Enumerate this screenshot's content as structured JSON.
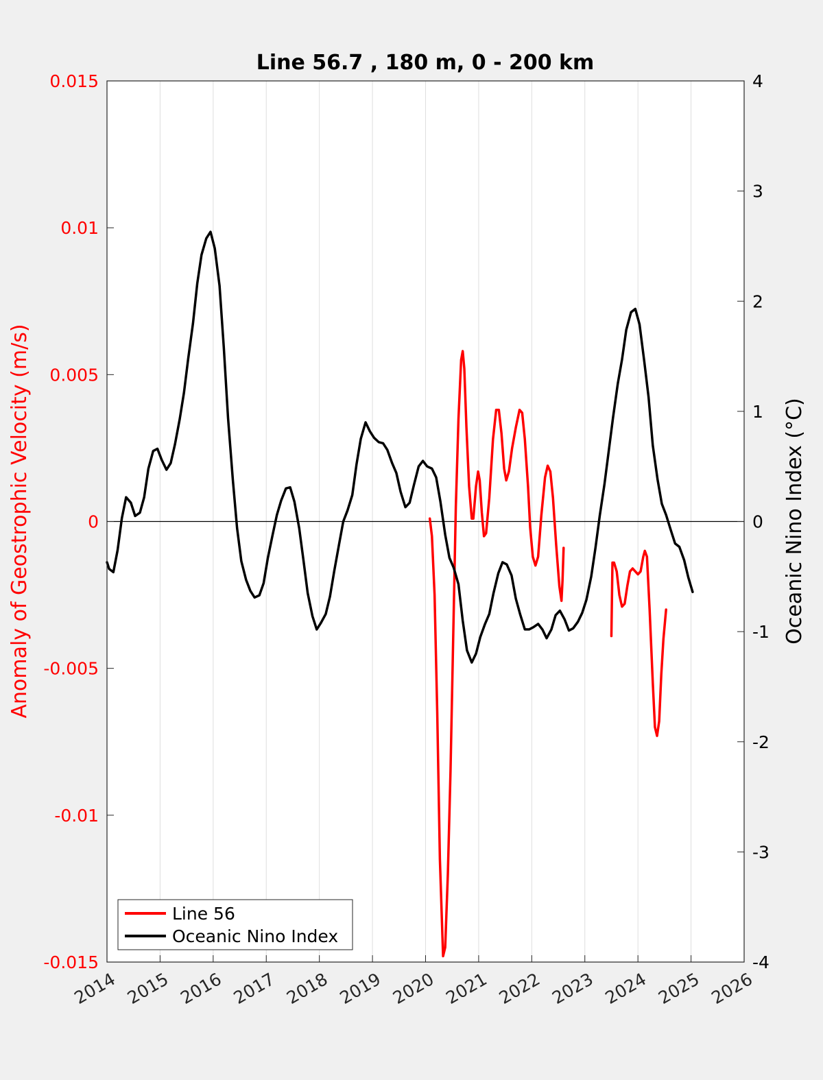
{
  "colors": {
    "background": "#f0f0f0",
    "plot_background": "#ffffff",
    "left_axis": "#ff0000",
    "right_axis": "#000000",
    "line56": "#ff0000",
    "oni": "#000000",
    "grid": "#dedede"
  },
  "chart_data": {
    "type": "line",
    "title": "Line 56.7 , 180 m, 0 - 200 km",
    "xlabel": "",
    "ylabel_left": "Anomaly of Geostrophic Velocity (m/s)",
    "ylabel_right": "Oceanic Nino Index (°C)",
    "xlim": [
      2014,
      2026
    ],
    "ylim_left": [
      -0.015,
      0.015
    ],
    "ylim_right": [
      -4,
      4
    ],
    "x_ticks": [
      "2014",
      "2015",
      "2016",
      "2017",
      "2018",
      "2019",
      "2020",
      "2021",
      "2022",
      "2023",
      "2024",
      "2025",
      "2026"
    ],
    "y_left_ticks": [
      "-0.015",
      "-0.01",
      "-0.005",
      "0",
      "0.005",
      "0.01",
      "0.015"
    ],
    "y_right_ticks": [
      "-4",
      "-3",
      "-2",
      "-1",
      "0",
      "1",
      "2",
      "3",
      "4"
    ],
    "grid": "vertical",
    "zero_line": true,
    "legend_position": "bottom-left",
    "series": [
      {
        "name": "Line 56",
        "axis": "left",
        "segments": [
          [
            [
              2020.08,
              0.0001
            ],
            [
              2020.12,
              -0.0005
            ],
            [
              2020.17,
              -0.0025
            ],
            [
              2020.22,
              -0.0065
            ],
            [
              2020.27,
              -0.0115
            ],
            [
              2020.33,
              -0.0148
            ],
            [
              2020.37,
              -0.0145
            ],
            [
              2020.42,
              -0.012
            ],
            [
              2020.47,
              -0.0085
            ],
            [
              2020.52,
              -0.004
            ],
            [
              2020.57,
              0.0005
            ],
            [
              2020.62,
              0.0035
            ],
            [
              2020.67,
              0.0055
            ],
            [
              2020.7,
              0.0058
            ],
            [
              2020.73,
              0.0052
            ],
            [
              2020.77,
              0.0032
            ],
            [
              2020.82,
              0.0012
            ],
            [
              2020.87,
              0.0001
            ],
            [
              2020.9,
              0.0001
            ],
            [
              2020.95,
              0.0012
            ],
            [
              2020.99,
              0.0017
            ],
            [
              2021.02,
              0.0014
            ],
            [
              2021.06,
              0.0003
            ],
            [
              2021.1,
              -0.0005
            ],
            [
              2021.14,
              -0.0004
            ],
            [
              2021.2,
              0.0008
            ],
            [
              2021.27,
              0.0028
            ],
            [
              2021.33,
              0.0038
            ],
            [
              2021.38,
              0.0038
            ],
            [
              2021.43,
              0.003
            ],
            [
              2021.48,
              0.0018
            ],
            [
              2021.52,
              0.0014
            ],
            [
              2021.57,
              0.0017
            ],
            [
              2021.63,
              0.0025
            ],
            [
              2021.7,
              0.0032
            ],
            [
              2021.77,
              0.0038
            ],
            [
              2021.82,
              0.0037
            ],
            [
              2021.87,
              0.0028
            ],
            [
              2021.93,
              0.0012
            ],
            [
              2021.97,
              -0.0002
            ],
            [
              2022.02,
              -0.0012
            ],
            [
              2022.07,
              -0.0015
            ],
            [
              2022.12,
              -0.0012
            ],
            [
              2022.18,
              0.0002
            ],
            [
              2022.25,
              0.0015
            ],
            [
              2022.3,
              0.0019
            ],
            [
              2022.35,
              0.0017
            ],
            [
              2022.4,
              0.0008
            ],
            [
              2022.46,
              -0.0008
            ],
            [
              2022.52,
              -0.0022
            ],
            [
              2022.56,
              -0.0027
            ],
            [
              2022.58,
              -0.002
            ],
            [
              2022.6,
              -0.0009
            ]
          ],
          [
            [
              2023.5,
              -0.0039
            ],
            [
              2023.52,
              -0.0014
            ],
            [
              2023.55,
              -0.0014
            ],
            [
              2023.6,
              -0.0017
            ],
            [
              2023.65,
              -0.0025
            ],
            [
              2023.7,
              -0.0029
            ],
            [
              2023.75,
              -0.0028
            ],
            [
              2023.8,
              -0.0022
            ],
            [
              2023.85,
              -0.0017
            ],
            [
              2023.9,
              -0.0016
            ],
            [
              2023.95,
              -0.0017
            ],
            [
              2024.0,
              -0.0018
            ],
            [
              2024.05,
              -0.0017
            ],
            [
              2024.1,
              -0.0012
            ],
            [
              2024.13,
              -0.001
            ],
            [
              2024.17,
              -0.0012
            ],
            [
              2024.22,
              -0.003
            ],
            [
              2024.28,
              -0.0055
            ],
            [
              2024.32,
              -0.007
            ],
            [
              2024.36,
              -0.0073
            ],
            [
              2024.4,
              -0.0068
            ],
            [
              2024.44,
              -0.0052
            ],
            [
              2024.48,
              -0.004
            ],
            [
              2024.53,
              -0.003
            ]
          ]
        ]
      },
      {
        "name": "Oceanic Nino Index",
        "axis": "right",
        "segments": [
          [
            [
              2014.0,
              -0.37
            ],
            [
              2014.04,
              -0.43
            ],
            [
              2014.12,
              -0.46
            ],
            [
              2014.2,
              -0.26
            ],
            [
              2014.28,
              0.03
            ],
            [
              2014.36,
              0.22
            ],
            [
              2014.45,
              0.17
            ],
            [
              2014.53,
              0.05
            ],
            [
              2014.62,
              0.08
            ],
            [
              2014.7,
              0.22
            ],
            [
              2014.78,
              0.48
            ],
            [
              2014.87,
              0.64
            ],
            [
              2014.95,
              0.66
            ],
            [
              2015.03,
              0.56
            ],
            [
              2015.12,
              0.47
            ],
            [
              2015.2,
              0.53
            ],
            [
              2015.28,
              0.7
            ],
            [
              2015.37,
              0.93
            ],
            [
              2015.45,
              1.17
            ],
            [
              2015.53,
              1.48
            ],
            [
              2015.62,
              1.8
            ],
            [
              2015.7,
              2.16
            ],
            [
              2015.78,
              2.42
            ],
            [
              2015.87,
              2.57
            ],
            [
              2015.95,
              2.63
            ],
            [
              2016.03,
              2.48
            ],
            [
              2016.12,
              2.14
            ],
            [
              2016.2,
              1.58
            ],
            [
              2016.28,
              0.94
            ],
            [
              2016.37,
              0.38
            ],
            [
              2016.45,
              -0.06
            ],
            [
              2016.53,
              -0.36
            ],
            [
              2016.62,
              -0.53
            ],
            [
              2016.7,
              -0.63
            ],
            [
              2016.78,
              -0.69
            ],
            [
              2016.87,
              -0.67
            ],
            [
              2016.95,
              -0.56
            ],
            [
              2017.03,
              -0.33
            ],
            [
              2017.12,
              -0.12
            ],
            [
              2017.2,
              0.06
            ],
            [
              2017.28,
              0.19
            ],
            [
              2017.37,
              0.3
            ],
            [
              2017.45,
              0.31
            ],
            [
              2017.53,
              0.18
            ],
            [
              2017.62,
              -0.06
            ],
            [
              2017.7,
              -0.35
            ],
            [
              2017.78,
              -0.65
            ],
            [
              2017.87,
              -0.86
            ],
            [
              2017.95,
              -0.98
            ],
            [
              2018.03,
              -0.92
            ],
            [
              2018.12,
              -0.84
            ],
            [
              2018.2,
              -0.68
            ],
            [
              2018.28,
              -0.45
            ],
            [
              2018.37,
              -0.21
            ],
            [
              2018.45,
              0.0
            ],
            [
              2018.53,
              0.1
            ],
            [
              2018.62,
              0.24
            ],
            [
              2018.7,
              0.52
            ],
            [
              2018.78,
              0.75
            ],
            [
              2018.87,
              0.9
            ],
            [
              2018.95,
              0.82
            ],
            [
              2019.03,
              0.76
            ],
            [
              2019.12,
              0.72
            ],
            [
              2019.2,
              0.71
            ],
            [
              2019.28,
              0.65
            ],
            [
              2019.37,
              0.53
            ],
            [
              2019.45,
              0.44
            ],
            [
              2019.53,
              0.27
            ],
            [
              2019.62,
              0.13
            ],
            [
              2019.7,
              0.17
            ],
            [
              2019.78,
              0.33
            ],
            [
              2019.87,
              0.5
            ],
            [
              2019.95,
              0.55
            ],
            [
              2020.03,
              0.5
            ],
            [
              2020.12,
              0.48
            ],
            [
              2020.2,
              0.4
            ],
            [
              2020.28,
              0.18
            ],
            [
              2020.37,
              -0.12
            ],
            [
              2020.45,
              -0.33
            ],
            [
              2020.53,
              -0.42
            ],
            [
              2020.62,
              -0.57
            ],
            [
              2020.7,
              -0.9
            ],
            [
              2020.78,
              -1.17
            ],
            [
              2020.87,
              -1.28
            ],
            [
              2020.95,
              -1.2
            ],
            [
              2021.03,
              -1.05
            ],
            [
              2021.12,
              -0.93
            ],
            [
              2021.2,
              -0.84
            ],
            [
              2021.28,
              -0.65
            ],
            [
              2021.37,
              -0.47
            ],
            [
              2021.45,
              -0.37
            ],
            [
              2021.53,
              -0.39
            ],
            [
              2021.62,
              -0.49
            ],
            [
              2021.7,
              -0.7
            ],
            [
              2021.78,
              -0.84
            ],
            [
              2021.87,
              -0.98
            ],
            [
              2021.95,
              -0.98
            ],
            [
              2022.03,
              -0.96
            ],
            [
              2022.12,
              -0.93
            ],
            [
              2022.2,
              -0.98
            ],
            [
              2022.28,
              -1.06
            ],
            [
              2022.37,
              -0.98
            ],
            [
              2022.45,
              -0.85
            ],
            [
              2022.53,
              -0.81
            ],
            [
              2022.62,
              -0.89
            ],
            [
              2022.7,
              -0.99
            ],
            [
              2022.78,
              -0.97
            ],
            [
              2022.87,
              -0.91
            ],
            [
              2022.95,
              -0.83
            ],
            [
              2023.03,
              -0.71
            ],
            [
              2023.12,
              -0.5
            ],
            [
              2023.2,
              -0.24
            ],
            [
              2023.28,
              0.05
            ],
            [
              2023.37,
              0.34
            ],
            [
              2023.45,
              0.64
            ],
            [
              2023.53,
              0.94
            ],
            [
              2023.62,
              1.25
            ],
            [
              2023.7,
              1.47
            ],
            [
              2023.78,
              1.74
            ],
            [
              2023.87,
              1.9
            ],
            [
              2023.95,
              1.93
            ],
            [
              2024.03,
              1.79
            ],
            [
              2024.12,
              1.45
            ],
            [
              2024.2,
              1.13
            ],
            [
              2024.28,
              0.69
            ],
            [
              2024.37,
              0.38
            ],
            [
              2024.45,
              0.16
            ],
            [
              2024.53,
              0.06
            ],
            [
              2024.62,
              -0.08
            ],
            [
              2024.7,
              -0.2
            ],
            [
              2024.78,
              -0.23
            ],
            [
              2024.87,
              -0.35
            ],
            [
              2024.95,
              -0.51
            ],
            [
              2025.03,
              -0.64
            ]
          ]
        ]
      }
    ]
  }
}
